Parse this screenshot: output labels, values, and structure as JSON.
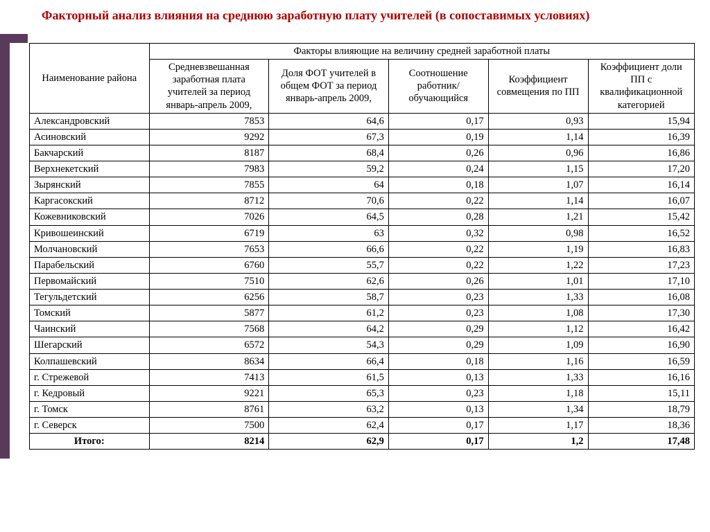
{
  "title": "Факторный анализ влияния на среднюю заработную плату учителей (в сопоставимых условиях)",
  "header": {
    "row0_col0": "Наименование района",
    "row0_span": "Факторы влияющие на величину средней заработной платы",
    "col1": "Средневзвешанная заработная плата учителей за период январь-апрель 2009,",
    "col2": "Доля ФОТ учителей в общем ФОТ за период январь-апрель 2009,",
    "col3": "Соотношение работник/обучающийся",
    "col4": "Коэффициент совмещения по ПП",
    "col5": "Коэффициент доли ПП с квалификационной категорией"
  },
  "rows": [
    {
      "name": "Александровский",
      "c1": "7853",
      "c2": "64,6",
      "c3": "0,17",
      "c4": "0,93",
      "c5": "15,94"
    },
    {
      "name": "Асиновский",
      "c1": "9292",
      "c2": "67,3",
      "c3": "0,19",
      "c4": "1,14",
      "c5": "16,39"
    },
    {
      "name": "Бакчарский",
      "c1": "8187",
      "c2": "68,4",
      "c3": "0,26",
      "c4": "0,96",
      "c5": "16,86"
    },
    {
      "name": "Верхнекетский",
      "c1": "7983",
      "c2": "59,2",
      "c3": "0,24",
      "c4": "1,15",
      "c5": "17,20"
    },
    {
      "name": "Зырянский",
      "c1": "7855",
      "c2": "64",
      "c3": "0,18",
      "c4": "1,07",
      "c5": "16,14"
    },
    {
      "name": "Каргасокский",
      "c1": "8712",
      "c2": "70,6",
      "c3": "0,22",
      "c4": "1,14",
      "c5": "16,07"
    },
    {
      "name": "Кожевниковский",
      "c1": "7026",
      "c2": "64,5",
      "c3": "0,28",
      "c4": "1,21",
      "c5": "15,42"
    },
    {
      "name": "Кривошеинский",
      "c1": "6719",
      "c2": "63",
      "c3": "0,32",
      "c4": "0,98",
      "c5": "16,52"
    },
    {
      "name": "Молчановский",
      "c1": "7653",
      "c2": "66,6",
      "c3": "0,22",
      "c4": "1,19",
      "c5": "16,83"
    },
    {
      "name": "Парабельский",
      "c1": "6760",
      "c2": "55,7",
      "c3": "0,22",
      "c4": "1,22",
      "c5": "17,23"
    },
    {
      "name": "Первомайский",
      "c1": "7510",
      "c2": "62,6",
      "c3": "0,26",
      "c4": "1,01",
      "c5": "17,10"
    },
    {
      "name": "Тегульдетский",
      "c1": "6256",
      "c2": "58,7",
      "c3": "0,23",
      "c4": "1,33",
      "c5": "16,08"
    },
    {
      "name": "Томский",
      "c1": "5877",
      "c2": "61,2",
      "c3": "0,23",
      "c4": "1,08",
      "c5": "17,30"
    },
    {
      "name": "Чаинский",
      "c1": "7568",
      "c2": "64,2",
      "c3": "0,29",
      "c4": "1,12",
      "c5": "16,42"
    },
    {
      "name": "Шегарский",
      "c1": "6572",
      "c2": "54,3",
      "c3": "0,29",
      "c4": "1,09",
      "c5": "16,90"
    },
    {
      "name": "Колпашевский",
      "c1": "8634",
      "c2": "66,4",
      "c3": "0,18",
      "c4": "1,16",
      "c5": "16,59"
    },
    {
      "name": "г. Стрежевой",
      "c1": "7413",
      "c2": "61,5",
      "c3": "0,13",
      "c4": "1,33",
      "c5": "16,16"
    },
    {
      "name": "г. Кедровый",
      "c1": "9221",
      "c2": "65,3",
      "c3": "0,23",
      "c4": "1,18",
      "c5": "15,11"
    },
    {
      "name": "г. Томск",
      "c1": "8761",
      "c2": "63,2",
      "c3": "0,13",
      "c4": "1,34",
      "c5": "18,79"
    },
    {
      "name": "г. Северск",
      "c1": "7500",
      "c2": "62,4",
      "c3": "0,17",
      "c4": "1,17",
      "c5": "18,36"
    }
  ],
  "total": {
    "name": "Итого:",
    "c1": "8214",
    "c2": "62,9",
    "c3": "0,17",
    "c4": "1,2",
    "c5": "17,48"
  }
}
